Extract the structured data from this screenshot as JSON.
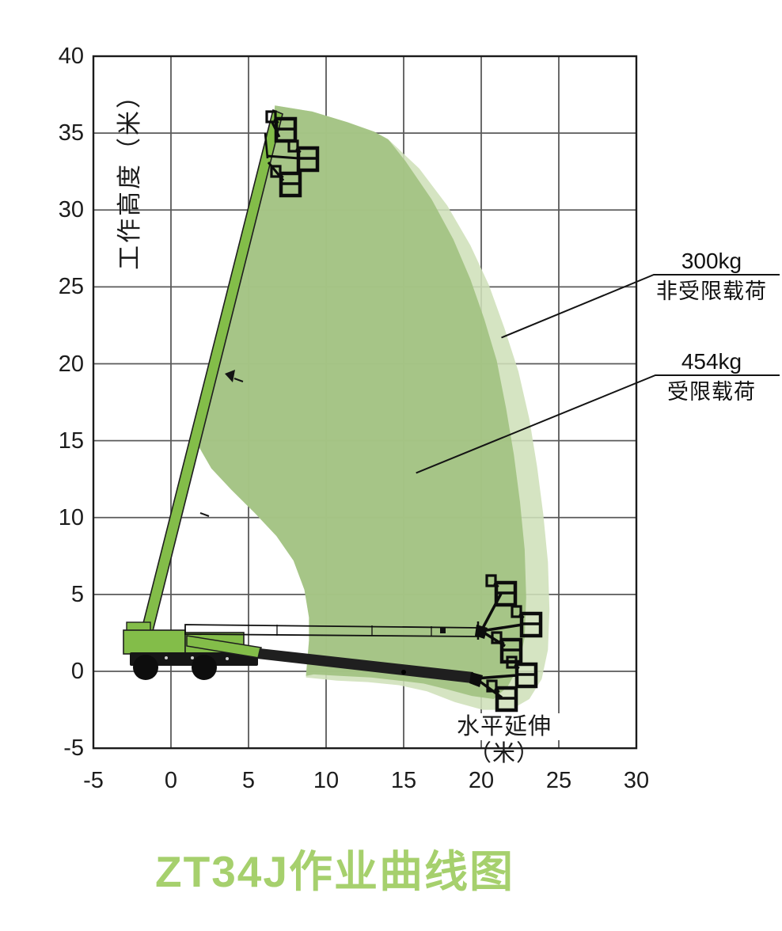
{
  "page_title": "ZT34J作业曲线图",
  "colors": {
    "envelope_outer_light": "#d5e4c3",
    "envelope_inner_green": "#aac78d",
    "machine_green": "#83bd49",
    "grid_line": "#5a5a5a",
    "frame": "#1b1b1b",
    "leader_line": "#141414",
    "title_green": "#a6d06d",
    "text": "#141414"
  },
  "machine_icon": "boom-lift-side-view",
  "chart_data": {
    "type": "area",
    "title": "ZT34J作业曲线图",
    "xlabel": "水平延伸（米）",
    "ylabel": "工作高度（米）",
    "xlim": [
      -5,
      30
    ],
    "ylim": [
      -5,
      40
    ],
    "x_ticks": [
      -5,
      0,
      5,
      10,
      15,
      20,
      25,
      30
    ],
    "y_ticks": [
      40,
      35,
      30,
      25,
      20,
      15,
      10,
      5,
      0,
      -5
    ],
    "grid": true,
    "legend_position": "right-side leader annotations",
    "series": [
      {
        "name": "300kg 非受限载荷",
        "kind": "outer-envelope",
        "color": "#d5e4c3",
        "points": [
          [
            6.7,
            36.8
          ],
          [
            9.1,
            36.4
          ],
          [
            11.4,
            35.7
          ],
          [
            13.2,
            35.0
          ],
          [
            14.1,
            34.5
          ],
          [
            16.0,
            32.7
          ],
          [
            17.8,
            30.3
          ],
          [
            19.3,
            27.7
          ],
          [
            20.5,
            25.1
          ],
          [
            21.5,
            22.3
          ],
          [
            22.4,
            19.5
          ],
          [
            23.1,
            16.4
          ],
          [
            23.6,
            13.3
          ],
          [
            24.0,
            10.2
          ],
          [
            24.3,
            7.1
          ],
          [
            24.4,
            4.0
          ],
          [
            24.3,
            1.4
          ],
          [
            23.9,
            -0.5
          ],
          [
            23.1,
            -1.8
          ],
          [
            21.9,
            -2.5
          ],
          [
            20.1,
            -2.5
          ],
          [
            18.3,
            -2.0
          ],
          [
            16.5,
            -1.3
          ],
          [
            14.7,
            -0.9
          ],
          [
            12.7,
            -0.7
          ],
          [
            10.7,
            -0.6
          ],
          [
            8.7,
            -0.4
          ],
          [
            8.9,
            2.0
          ],
          [
            8.9,
            3.5
          ],
          [
            8.6,
            5.3
          ],
          [
            7.9,
            7.2
          ],
          [
            6.8,
            8.8
          ],
          [
            5.4,
            10.3
          ],
          [
            3.9,
            11.8
          ],
          [
            2.6,
            13.2
          ],
          [
            1.8,
            14.6
          ],
          [
            1.8,
            15.6
          ],
          [
            2.8,
            19.0
          ],
          [
            4.3,
            25.0
          ],
          [
            5.6,
            30.2
          ],
          [
            6.4,
            33.6
          ]
        ]
      },
      {
        "name": "454kg 受限载荷",
        "kind": "inner-envelope",
        "color": "#aac78d",
        "points": [
          [
            6.7,
            36.8
          ],
          [
            9.1,
            36.4
          ],
          [
            11.4,
            35.7
          ],
          [
            13.1,
            35.1
          ],
          [
            14.0,
            34.6
          ],
          [
            15.1,
            33.2
          ],
          [
            16.8,
            30.7
          ],
          [
            18.2,
            28.1
          ],
          [
            19.3,
            25.5
          ],
          [
            20.2,
            22.9
          ],
          [
            21.0,
            20.2
          ],
          [
            21.6,
            17.1
          ],
          [
            22.1,
            14.1
          ],
          [
            22.5,
            11.0
          ],
          [
            22.8,
            7.9
          ],
          [
            22.9,
            4.8
          ],
          [
            22.8,
            2.2
          ],
          [
            22.4,
            0.3
          ],
          [
            21.7,
            -1.0
          ],
          [
            20.8,
            -1.8
          ],
          [
            19.4,
            -1.6
          ],
          [
            17.9,
            -1.2
          ],
          [
            16.3,
            -0.8
          ],
          [
            14.7,
            -0.6
          ],
          [
            12.9,
            -0.4
          ],
          [
            10.9,
            -0.3
          ],
          [
            9.2,
            -0.2
          ],
          [
            8.7,
            -0.3
          ],
          [
            8.9,
            2.0
          ],
          [
            8.9,
            3.5
          ],
          [
            8.6,
            5.3
          ],
          [
            7.9,
            7.2
          ],
          [
            6.8,
            8.8
          ],
          [
            5.4,
            10.3
          ],
          [
            3.9,
            11.8
          ],
          [
            2.6,
            13.2
          ],
          [
            1.8,
            14.6
          ],
          [
            1.8,
            15.6
          ],
          [
            2.8,
            19.0
          ],
          [
            4.3,
            25.0
          ],
          [
            5.6,
            30.2
          ],
          [
            6.4,
            33.6
          ]
        ]
      }
    ],
    "annotations": [
      {
        "line1": "300kg",
        "line2": "非受限载荷",
        "points_to_m": [
          21.3,
          21.7
        ]
      },
      {
        "line1": "454kg",
        "line2": "受限载荷",
        "points_to_m": [
          15.8,
          12.9
        ]
      }
    ]
  }
}
